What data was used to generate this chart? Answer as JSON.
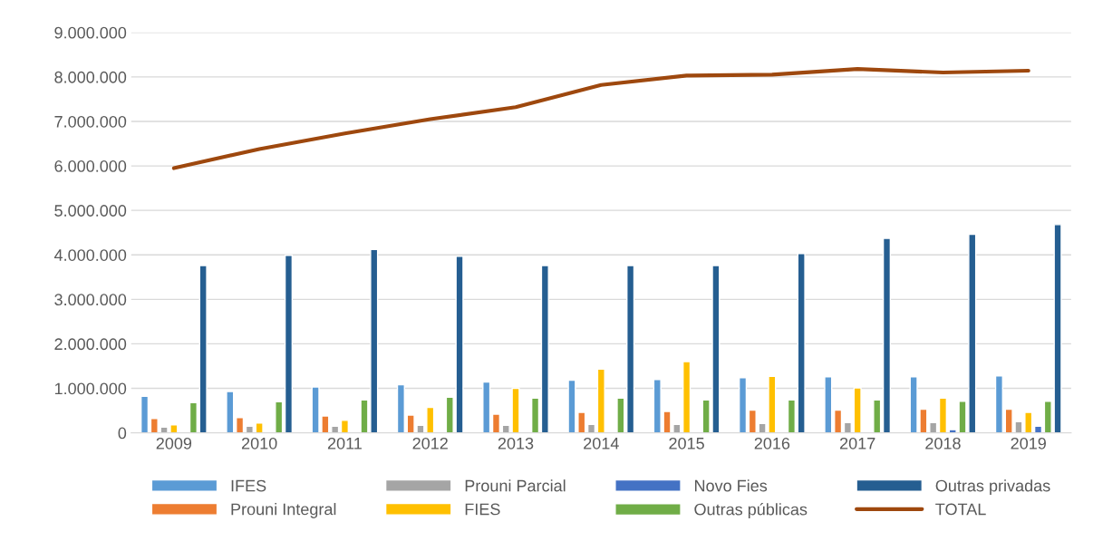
{
  "chart_data": {
    "type": "bar",
    "categories": [
      "2009",
      "2010",
      "2011",
      "2012",
      "2013",
      "2014",
      "2015",
      "2016",
      "2017",
      "2018",
      "2019"
    ],
    "ylim": [
      0,
      9000000
    ],
    "yticks": [
      {
        "value": 0,
        "label": "0"
      },
      {
        "value": 1000000,
        "label": "1.000.000"
      },
      {
        "value": 2000000,
        "label": "2.000.000"
      },
      {
        "value": 3000000,
        "label": "3.000.000"
      },
      {
        "value": 4000000,
        "label": "4.000.000"
      },
      {
        "value": 5000000,
        "label": "5.000.000"
      },
      {
        "value": 6000000,
        "label": "6.000.000"
      },
      {
        "value": 7000000,
        "label": "7.000.000"
      },
      {
        "value": 8000000,
        "label": "8.000.000"
      },
      {
        "value": 9000000,
        "label": "9.000.000"
      }
    ],
    "grid": "y",
    "legend": "bottom",
    "series": [
      {
        "name": "IFES",
        "color": "#5b9bd5",
        "values": [
          820000,
          930000,
          1030000,
          1080000,
          1140000,
          1180000,
          1200000,
          1240000,
          1260000,
          1260000,
          1280000
        ]
      },
      {
        "name": "Prouni Integral",
        "color": "#ed7d31",
        "values": [
          320000,
          340000,
          380000,
          400000,
          420000,
          460000,
          480000,
          510000,
          510000,
          530000,
          530000
        ]
      },
      {
        "name": "Prouni Parcial",
        "color": "#a5a5a5",
        "values": [
          130000,
          150000,
          150000,
          170000,
          170000,
          190000,
          190000,
          210000,
          230000,
          230000,
          250000
        ]
      },
      {
        "name": "FIES",
        "color": "#ffc000",
        "values": [
          180000,
          220000,
          280000,
          570000,
          1000000,
          1430000,
          1600000,
          1270000,
          1010000,
          780000,
          460000
        ]
      },
      {
        "name": "Novo Fies",
        "color": "#4472c4",
        "values": [
          null,
          null,
          null,
          null,
          null,
          null,
          null,
          null,
          null,
          70000,
          150000
        ]
      },
      {
        "name": "Outras públicas",
        "color": "#70ad47",
        "values": [
          680000,
          700000,
          740000,
          800000,
          780000,
          780000,
          740000,
          740000,
          740000,
          710000,
          710000
        ]
      },
      {
        "name": "Outras privadas",
        "color": "#255e91",
        "values": [
          3760000,
          3990000,
          4120000,
          3970000,
          3760000,
          3760000,
          3760000,
          4030000,
          4370000,
          4460000,
          4680000
        ]
      },
      {
        "name": "TOTAL",
        "type": "line",
        "color": "#9e480e",
        "values": [
          5950000,
          6380000,
          6730000,
          7050000,
          7320000,
          7820000,
          8030000,
          8050000,
          8180000,
          8100000,
          8140000
        ]
      }
    ]
  }
}
